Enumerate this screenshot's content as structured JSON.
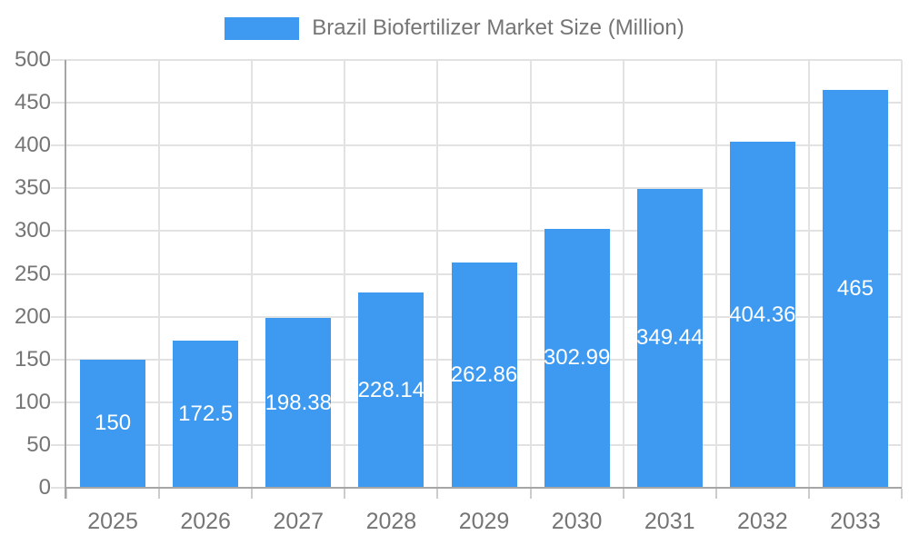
{
  "chart_data": {
    "type": "bar",
    "title": "Brazil Biofertilizer Market Size (Million)",
    "categories": [
      "2025",
      "2026",
      "2027",
      "2028",
      "2029",
      "2030",
      "2031",
      "2032",
      "2033"
    ],
    "values": [
      150,
      172.5,
      198.38,
      228.14,
      262.86,
      302.99,
      349.44,
      404.36,
      465
    ],
    "value_labels": [
      "150",
      "172.5",
      "198.38",
      "228.14",
      "262.86",
      "302.99",
      "349.44",
      "404.36",
      "465"
    ],
    "xlabel": "",
    "ylabel": "",
    "ylim": [
      0,
      500
    ],
    "ytick_step": 50,
    "grid": true,
    "legend_position": "top",
    "colors": {
      "bar": "#3d9af0",
      "value_label": "#ffffff",
      "axis_text": "#757575",
      "axis_line": "#a6a6a6",
      "gridline": "#e2e2e2",
      "tick": "#cccccc"
    }
  },
  "legend": {
    "label": "Brazil Biofertilizer Market Size (Million)"
  }
}
